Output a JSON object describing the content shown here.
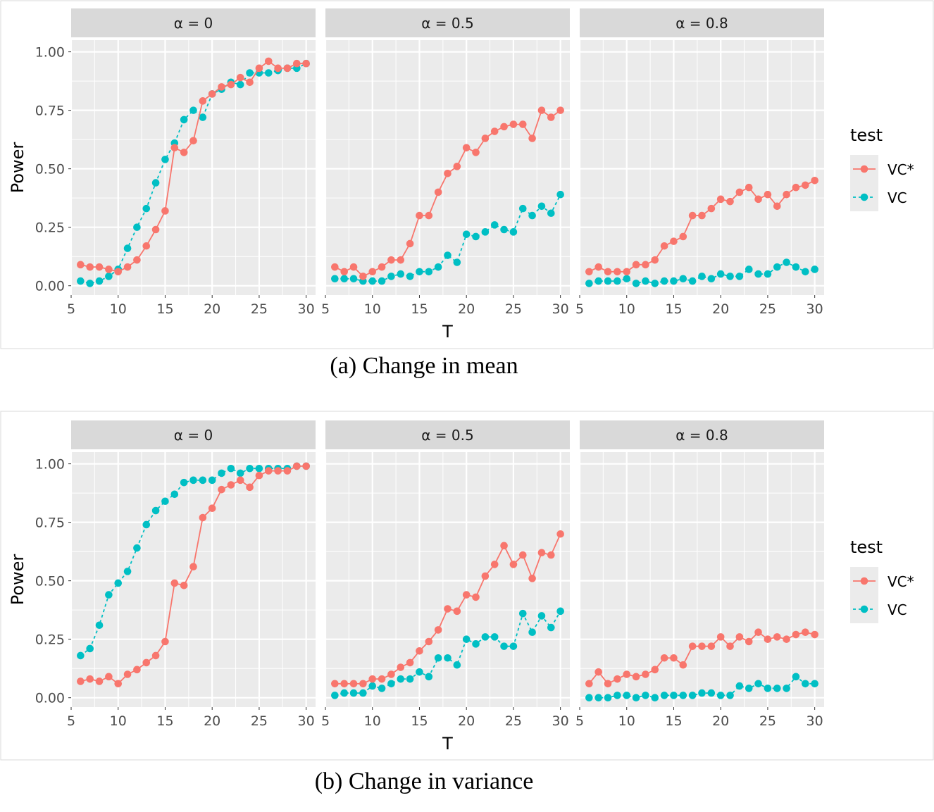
{
  "colors": {
    "vc_star": "#F8766D",
    "vc": "#00BFC4",
    "panel_bg": "#EBEBEB",
    "strip_bg": "#D9D9D9",
    "grid": "#FFFFFF"
  },
  "chart_data": [
    {
      "type": "line",
      "caption": "(a) Change in mean",
      "xlabel": "T",
      "ylabel": "Power",
      "xlim": [
        5,
        31
      ],
      "ylim": [
        0,
        1.0
      ],
      "xticks": [
        "5",
        "10",
        "15",
        "20",
        "25",
        "30"
      ],
      "yticks": [
        "0.00",
        "0.25",
        "0.50",
        "0.75",
        "1.00"
      ],
      "legend": {
        "title": "test",
        "position": "right",
        "entries": [
          "VC*",
          "VC"
        ]
      },
      "x": [
        6,
        7,
        8,
        9,
        10,
        11,
        12,
        13,
        14,
        15,
        16,
        17,
        18,
        19,
        20,
        21,
        22,
        23,
        24,
        25,
        26,
        27,
        28,
        29,
        30
      ],
      "facets": [
        {
          "label": "α = 0",
          "series": [
            {
              "name": "VC*",
              "values": [
                0.09,
                0.08,
                0.08,
                0.07,
                0.06,
                0.08,
                0.11,
                0.17,
                0.24,
                0.32,
                0.59,
                0.57,
                0.62,
                0.79,
                0.82,
                0.85,
                0.86,
                0.89,
                0.87,
                0.93,
                0.96,
                0.93,
                0.93,
                0.95,
                0.95
              ]
            },
            {
              "name": "VC",
              "values": [
                0.02,
                0.01,
                0.02,
                0.04,
                0.07,
                0.16,
                0.25,
                0.33,
                0.44,
                0.54,
                0.61,
                0.71,
                0.75,
                0.72,
                0.82,
                0.84,
                0.87,
                0.86,
                0.91,
                0.91,
                0.91,
                0.92,
                0.93,
                0.93,
                0.95
              ]
            }
          ]
        },
        {
          "label": "α = 0.5",
          "series": [
            {
              "name": "VC*",
              "values": [
                0.08,
                0.06,
                0.08,
                0.04,
                0.06,
                0.08,
                0.11,
                0.11,
                0.18,
                0.3,
                0.3,
                0.4,
                0.48,
                0.51,
                0.59,
                0.57,
                0.63,
                0.66,
                0.68,
                0.69,
                0.69,
                0.63,
                0.75,
                0.72,
                0.75
              ]
            },
            {
              "name": "VC",
              "values": [
                0.03,
                0.03,
                0.03,
                0.02,
                0.02,
                0.02,
                0.04,
                0.05,
                0.04,
                0.06,
                0.06,
                0.08,
                0.13,
                0.1,
                0.22,
                0.21,
                0.23,
                0.26,
                0.24,
                0.23,
                0.33,
                0.3,
                0.34,
                0.31,
                0.39
              ]
            }
          ]
        },
        {
          "label": "α = 0.8",
          "series": [
            {
              "name": "VC*",
              "values": [
                0.06,
                0.08,
                0.06,
                0.06,
                0.06,
                0.09,
                0.09,
                0.11,
                0.17,
                0.19,
                0.21,
                0.3,
                0.3,
                0.33,
                0.37,
                0.36,
                0.4,
                0.42,
                0.37,
                0.39,
                0.34,
                0.39,
                0.42,
                0.43,
                0.45
              ]
            },
            {
              "name": "VC",
              "values": [
                0.01,
                0.02,
                0.02,
                0.02,
                0.03,
                0.01,
                0.02,
                0.01,
                0.02,
                0.02,
                0.03,
                0.02,
                0.04,
                0.03,
                0.05,
                0.04,
                0.04,
                0.07,
                0.05,
                0.05,
                0.08,
                0.1,
                0.08,
                0.06,
                0.07
              ]
            }
          ]
        }
      ]
    },
    {
      "type": "line",
      "caption": "(b) Change in variance",
      "xlabel": "T",
      "ylabel": "Power",
      "xlim": [
        5,
        31
      ],
      "ylim": [
        0,
        1.0
      ],
      "xticks": [
        "5",
        "10",
        "15",
        "20",
        "25",
        "30"
      ],
      "yticks": [
        "0.00",
        "0.25",
        "0.50",
        "0.75",
        "1.00"
      ],
      "legend": {
        "title": "test",
        "position": "right",
        "entries": [
          "VC*",
          "VC"
        ]
      },
      "x": [
        6,
        7,
        8,
        9,
        10,
        11,
        12,
        13,
        14,
        15,
        16,
        17,
        18,
        19,
        20,
        21,
        22,
        23,
        24,
        25,
        26,
        27,
        28,
        29,
        30
      ],
      "facets": [
        {
          "label": "α = 0",
          "series": [
            {
              "name": "VC*",
              "values": [
                0.07,
                0.08,
                0.07,
                0.09,
                0.06,
                0.1,
                0.12,
                0.15,
                0.18,
                0.24,
                0.49,
                0.48,
                0.56,
                0.77,
                0.81,
                0.89,
                0.91,
                0.93,
                0.9,
                0.95,
                0.97,
                0.97,
                0.97,
                0.99,
                0.99
              ]
            },
            {
              "name": "VC",
              "values": [
                0.18,
                0.21,
                0.31,
                0.44,
                0.49,
                0.54,
                0.64,
                0.74,
                0.8,
                0.84,
                0.87,
                0.92,
                0.93,
                0.93,
                0.93,
                0.96,
                0.98,
                0.96,
                0.98,
                0.98,
                0.98,
                0.98,
                0.98,
                0.99,
                0.99
              ]
            }
          ]
        },
        {
          "label": "α = 0.5",
          "series": [
            {
              "name": "VC*",
              "values": [
                0.06,
                0.06,
                0.06,
                0.06,
                0.08,
                0.08,
                0.1,
                0.13,
                0.15,
                0.2,
                0.24,
                0.29,
                0.38,
                0.37,
                0.44,
                0.43,
                0.52,
                0.57,
                0.65,
                0.57,
                0.61,
                0.51,
                0.62,
                0.61,
                0.7
              ]
            },
            {
              "name": "VC",
              "values": [
                0.01,
                0.02,
                0.02,
                0.02,
                0.05,
                0.04,
                0.06,
                0.08,
                0.08,
                0.11,
                0.09,
                0.17,
                0.17,
                0.14,
                0.25,
                0.23,
                0.26,
                0.26,
                0.22,
                0.22,
                0.36,
                0.28,
                0.35,
                0.3,
                0.37
              ]
            }
          ]
        },
        {
          "label": "α = 0.8",
          "series": [
            {
              "name": "VC*",
              "values": [
                0.06,
                0.11,
                0.06,
                0.08,
                0.1,
                0.09,
                0.1,
                0.12,
                0.17,
                0.17,
                0.14,
                0.22,
                0.22,
                0.22,
                0.26,
                0.22,
                0.26,
                0.24,
                0.28,
                0.25,
                0.26,
                0.25,
                0.27,
                0.28,
                0.27
              ]
            },
            {
              "name": "VC",
              "values": [
                0.0,
                0.0,
                0.0,
                0.01,
                0.01,
                0.0,
                0.01,
                0.0,
                0.01,
                0.01,
                0.01,
                0.01,
                0.02,
                0.02,
                0.01,
                0.01,
                0.05,
                0.04,
                0.06,
                0.04,
                0.04,
                0.04,
                0.09,
                0.06,
                0.06
              ]
            }
          ]
        }
      ]
    }
  ]
}
